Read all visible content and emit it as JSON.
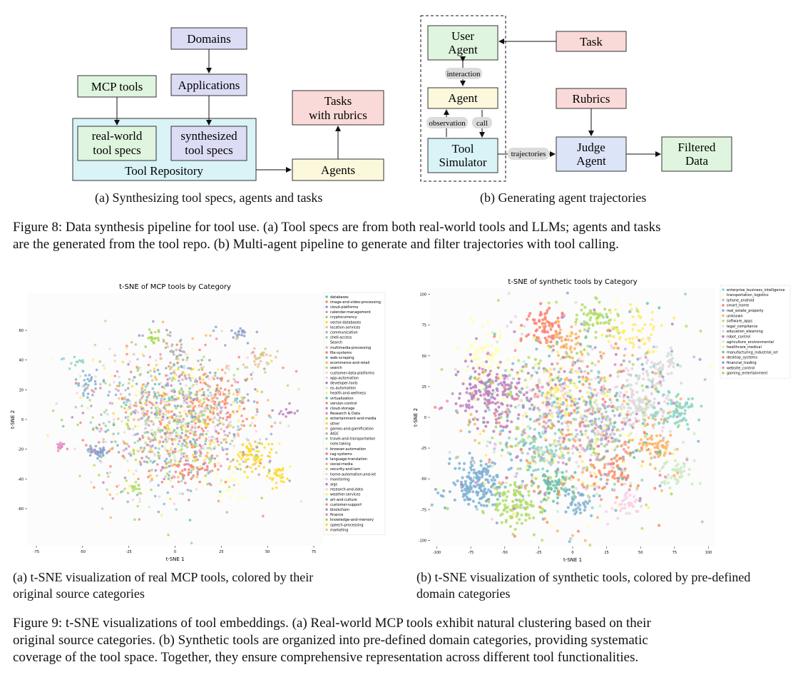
{
  "fig8": {
    "a": {
      "domains": "Domains",
      "applications": "Applications",
      "mcp_tools": "MCP tools",
      "real_world_1": "real-world",
      "real_world_2": "tool specs",
      "synth_1": "synthesized",
      "synth_2": "tool specs",
      "repo": "Tool Repository",
      "tasks_1": "Tasks",
      "tasks_2": "with rubrics",
      "agents": "Agents",
      "caption": "(a) Synthesizing tool specs, agents and tasks"
    },
    "b": {
      "user_agent_1": "User",
      "user_agent_2": "Agent",
      "interaction": "interaction",
      "agent": "Agent",
      "observation": "observation",
      "call": "call",
      "tool_sim_1": "Tool",
      "tool_sim_2": "Simulator",
      "trajectories": "trajectories",
      "task": "Task",
      "rubrics": "Rubrics",
      "judge_1": "Judge",
      "judge_2": "Agent",
      "filtered_1": "Filtered",
      "filtered_2": "Data",
      "caption": "(b) Generating agent trajectories"
    },
    "caption_1": "Figure 8: Data synthesis pipeline for tool use. (a) Tool specs are from both real-world tools and LLMs; agents and tasks",
    "caption_2": "are the generated from the tool repo. (b) Multi-agent pipeline to generate and filter trajectories with tool calling."
  },
  "fig9": {
    "caption_1": "Figure 9: t-SNE visualizations of tool embeddings. (a) Real-world MCP tools exhibit natural clustering based on their",
    "caption_2": "original source categories. (b) Synthetic tools are organized into pre-defined domain categories, providing systematic",
    "caption_3": "coverage of the tool space. Together, they ensure comprehensive representation across different tool functionalities.",
    "a_caption_1": "(a) t-SNE visualization of real MCP tools, colored by their",
    "a_caption_2": "original source categories",
    "b_caption_1": "(b) t-SNE visualization of synthetic tools, colored by pre-defined",
    "b_caption_2": "domain categories"
  },
  "chart_data": [
    {
      "type": "scatter",
      "title": "t-SNE of MCP tools by Category",
      "xlabel": "t-SNE 1",
      "ylabel": "t-SNE 2",
      "xlim": [
        -80,
        80
      ],
      "ylim": [
        -85,
        85
      ],
      "xticks": [
        -75,
        -50,
        -25,
        0,
        25,
        50,
        75
      ],
      "yticks": [
        -60,
        -40,
        -20,
        0,
        20,
        40,
        60
      ],
      "legend": [
        "databases",
        "image-and-video-processing",
        "cloud-platforms",
        "calendar-management",
        "cryptocurrency",
        "vector-databases",
        "location-services",
        "communication",
        "shell-access",
        "Search",
        "multimedia-processing",
        "file-systems",
        "web-scraping",
        "ecommerce-and-retail",
        "search",
        "customer-data-platforms",
        "app-automation",
        "developer-tools",
        "os-automation",
        "health-and-wellness",
        "virtualization",
        "version-control",
        "cloud-storage",
        "Research & Data",
        "entertainment-and-media",
        "other",
        "games-and-gamification",
        "AIGC",
        "travel-and-transportation",
        "note-taking",
        "browser-automation",
        "rag-systems",
        "language-translation",
        "social-media",
        "security-and-iam",
        "home-automation-and-iot",
        "monitoring",
        "aigc",
        "research-and-data",
        "weather-services",
        "art-and-culture",
        "customer-support",
        "blockchain",
        "finance",
        "knowledge-and-memory",
        "speech-processing",
        "marketing"
      ],
      "legend_position": "right",
      "colors": [
        "#66c2a5",
        "#fc8d62",
        "#8da0cb",
        "#e78ac3",
        "#a6d854",
        "#ffd92f",
        "#e5c494",
        "#b3b3b3",
        "#8dd3c7",
        "#ffffb3",
        "#bebada",
        "#fb8072",
        "#80b1d3",
        "#fdb462",
        "#b3de69",
        "#fccde5",
        "#d9d9d9",
        "#bc80bd",
        "#ccebc5",
        "#ffed6f"
      ]
    },
    {
      "type": "scatter",
      "title": "t-SNE of synthetic tools by Category",
      "xlabel": "t-SNE 1",
      "ylabel": "t-SNE 2",
      "xlim": [
        -105,
        105
      ],
      "ylim": [
        -105,
        105
      ],
      "xticks": [
        -100,
        -75,
        -50,
        -25,
        0,
        25,
        50,
        75,
        100
      ],
      "yticks": [
        -100,
        -75,
        -50,
        -25,
        0,
        25,
        50,
        75,
        100
      ],
      "legend": [
        "enterprise_business_intelligence",
        "transportation_logistics",
        "iphone_android",
        "smart_home",
        "real_estate_property",
        "unknown",
        "software_apps",
        "legal_compliance",
        "education_elearning",
        "robot_control",
        "agriculture_environmental",
        "healthcare_medical",
        "manufacturing_industrial_iot",
        "desktop_systems",
        "financial_trading",
        "website_control",
        "gaming_entertainment"
      ],
      "legend_position": "right",
      "colors": [
        "#8dd3c7",
        "#ffffb3",
        "#bebada",
        "#fb8072",
        "#80b1d3",
        "#fdb462",
        "#b3de69",
        "#fccde5",
        "#d9d9d9",
        "#bc80bd",
        "#ccebc5",
        "#ffed6f",
        "#66c2a5",
        "#fc8d62",
        "#8da0cb",
        "#e78ac3",
        "#a6d854"
      ]
    }
  ]
}
